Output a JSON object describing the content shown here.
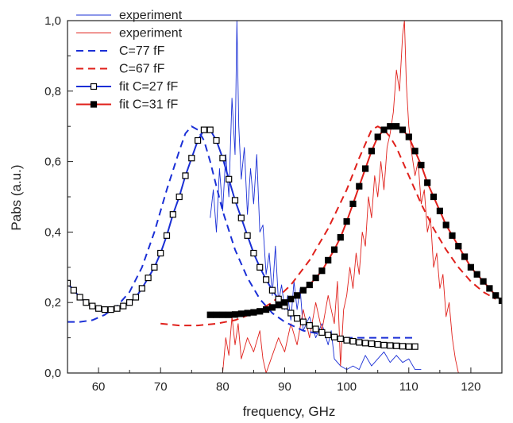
{
  "colors": {
    "blue": "#1a2fd6",
    "red": "#e0201b",
    "axis": "#222222",
    "background": "#ffffff"
  },
  "chart_data": {
    "type": "line",
    "xlabel": "frequency, GHz",
    "ylabel": "Pabs (a.u.)",
    "xlim": [
      55,
      125
    ],
    "ylim": [
      0,
      1.0
    ],
    "xticks": [
      60,
      70,
      80,
      90,
      100,
      110,
      120
    ],
    "xtick_labels": [
      "60",
      "70",
      "80",
      "90",
      "100",
      "110",
      "120"
    ],
    "yticks": [
      0,
      0.2,
      0.4,
      0.6,
      0.8,
      1.0
    ],
    "ytick_labels": [
      "0,0",
      "0,2",
      "0,4",
      "0,6",
      "0,8",
      "1,0"
    ],
    "grid": false,
    "legend_position": "top-left",
    "series": [
      {
        "name": "experiment",
        "color": "#1a2fd6",
        "style": "thin-line",
        "points": [
          [
            78,
            0.44
          ],
          [
            78.5,
            0.52
          ],
          [
            79,
            0.4
          ],
          [
            79.5,
            0.58
          ],
          [
            80,
            0.46
          ],
          [
            80.5,
            0.62
          ],
          [
            81,
            0.5
          ],
          [
            81.5,
            0.78
          ],
          [
            82,
            0.62
          ],
          [
            82.3,
            1.0
          ],
          [
            82.6,
            0.7
          ],
          [
            83,
            0.55
          ],
          [
            83.5,
            0.64
          ],
          [
            84,
            0.45
          ],
          [
            84.5,
            0.58
          ],
          [
            85,
            0.48
          ],
          [
            85.5,
            0.62
          ],
          [
            86,
            0.4
          ],
          [
            86.5,
            0.42
          ],
          [
            87,
            0.28
          ],
          [
            87.5,
            0.34
          ],
          [
            88,
            0.22
          ],
          [
            88.5,
            0.36
          ],
          [
            89,
            0.2
          ],
          [
            89.5,
            0.25
          ],
          [
            90,
            0.18
          ],
          [
            90.5,
            0.22
          ],
          [
            91,
            0.15
          ],
          [
            91.5,
            0.26
          ],
          [
            92,
            0.18
          ],
          [
            92.5,
            0.24
          ],
          [
            93,
            0.12
          ],
          [
            94,
            0.16
          ],
          [
            95,
            0.1
          ],
          [
            96,
            0.14
          ],
          [
            97,
            0.08
          ],
          [
            97.5,
            0.12
          ],
          [
            98,
            0.04
          ],
          [
            99,
            0.02
          ],
          [
            100,
            0.01
          ],
          [
            101,
            0.02
          ],
          [
            102,
            0.01
          ],
          [
            103,
            0.05
          ],
          [
            104,
            0.02
          ],
          [
            105,
            0.04
          ],
          [
            106,
            0.06
          ],
          [
            107,
            0.03
          ],
          [
            108,
            0.05
          ],
          [
            109,
            0.03
          ],
          [
            110,
            0.04
          ],
          [
            111,
            0.01
          ],
          [
            112,
            0.01
          ]
        ]
      },
      {
        "name": "experiment",
        "color": "#e0201b",
        "style": "thin-line",
        "points": [
          [
            80,
            0.0
          ],
          [
            80.5,
            0.1
          ],
          [
            81,
            0.05
          ],
          [
            81.5,
            0.16
          ],
          [
            82,
            0.08
          ],
          [
            82.5,
            0.14
          ],
          [
            83,
            0.04
          ],
          [
            84,
            0.1
          ],
          [
            85,
            0.06
          ],
          [
            86,
            0.12
          ],
          [
            86.5,
            0.04
          ],
          [
            87,
            0.0
          ],
          [
            88,
            0.05
          ],
          [
            89,
            0.1
          ],
          [
            90,
            0.06
          ],
          [
            91,
            0.14
          ],
          [
            92,
            0.08
          ],
          [
            93,
            0.18
          ],
          [
            94,
            0.1
          ],
          [
            95,
            0.2
          ],
          [
            96,
            0.12
          ],
          [
            97,
            0.22
          ],
          [
            98,
            0.14
          ],
          [
            98.5,
            0.26
          ],
          [
            99,
            0.02
          ],
          [
            99.5,
            0.18
          ],
          [
            100,
            0.22
          ],
          [
            100.5,
            0.3
          ],
          [
            101,
            0.24
          ],
          [
            101.5,
            0.34
          ],
          [
            102,
            0.28
          ],
          [
            102.5,
            0.4
          ],
          [
            103,
            0.36
          ],
          [
            103.5,
            0.5
          ],
          [
            104,
            0.44
          ],
          [
            104.5,
            0.56
          ],
          [
            105,
            0.5
          ],
          [
            105.5,
            0.6
          ],
          [
            106,
            0.52
          ],
          [
            106.5,
            0.64
          ],
          [
            107,
            0.68
          ],
          [
            107.5,
            0.74
          ],
          [
            108,
            0.86
          ],
          [
            108.5,
            0.8
          ],
          [
            109,
            0.96
          ],
          [
            109.3,
            1.0
          ],
          [
            109.6,
            0.82
          ],
          [
            110,
            0.7
          ],
          [
            110.5,
            0.62
          ],
          [
            111,
            0.56
          ],
          [
            111.5,
            0.6
          ],
          [
            112,
            0.48
          ],
          [
            112.5,
            0.52
          ],
          [
            113,
            0.4
          ],
          [
            113.5,
            0.44
          ],
          [
            114,
            0.3
          ],
          [
            114.5,
            0.34
          ],
          [
            115,
            0.24
          ],
          [
            115.5,
            0.28
          ],
          [
            116,
            0.16
          ],
          [
            116.5,
            0.2
          ],
          [
            117,
            0.1
          ],
          [
            117.5,
            0.04
          ],
          [
            118,
            0.0
          ]
        ]
      },
      {
        "name": "C=77 fF",
        "color": "#1a2fd6",
        "style": "dashed",
        "points": [
          [
            55,
            0.145
          ],
          [
            57,
            0.145
          ],
          [
            59,
            0.15
          ],
          [
            61,
            0.165
          ],
          [
            63,
            0.19
          ],
          [
            65,
            0.23
          ],
          [
            67,
            0.3
          ],
          [
            69,
            0.4
          ],
          [
            71,
            0.52
          ],
          [
            73,
            0.63
          ],
          [
            74,
            0.68
          ],
          [
            75,
            0.7
          ],
          [
            76,
            0.69
          ],
          [
            77,
            0.66
          ],
          [
            78,
            0.6
          ],
          [
            79,
            0.53
          ],
          [
            80,
            0.46
          ],
          [
            82,
            0.35
          ],
          [
            84,
            0.27
          ],
          [
            86,
            0.21
          ],
          [
            88,
            0.17
          ],
          [
            90,
            0.145
          ],
          [
            93,
            0.12
          ],
          [
            96,
            0.11
          ],
          [
            100,
            0.1
          ],
          [
            104,
            0.1
          ],
          [
            108,
            0.1
          ],
          [
            111,
            0.1
          ]
        ]
      },
      {
        "name": "C=67 fF",
        "color": "#e0201b",
        "style": "dashed",
        "points": [
          [
            70,
            0.14
          ],
          [
            73,
            0.135
          ],
          [
            76,
            0.135
          ],
          [
            79,
            0.14
          ],
          [
            82,
            0.15
          ],
          [
            85,
            0.17
          ],
          [
            88,
            0.2
          ],
          [
            91,
            0.25
          ],
          [
            94,
            0.32
          ],
          [
            97,
            0.41
          ],
          [
            100,
            0.52
          ],
          [
            102,
            0.61
          ],
          [
            103,
            0.65
          ],
          [
            104,
            0.69
          ],
          [
            105,
            0.7
          ],
          [
            106,
            0.69
          ],
          [
            107,
            0.67
          ],
          [
            108,
            0.64
          ],
          [
            110,
            0.56
          ],
          [
            112,
            0.48
          ],
          [
            114,
            0.41
          ],
          [
            116,
            0.35
          ],
          [
            118,
            0.3
          ],
          [
            120,
            0.26
          ],
          [
            122,
            0.23
          ],
          [
            124,
            0.21
          ]
        ]
      },
      {
        "name": "fit C=27 fF",
        "color": "#1a2fd6",
        "style": "line-open-square",
        "points": [
          [
            55,
            0.255
          ],
          [
            56,
            0.235
          ],
          [
            57,
            0.215
          ],
          [
            58,
            0.2
          ],
          [
            59,
            0.19
          ],
          [
            60,
            0.183
          ],
          [
            61,
            0.18
          ],
          [
            62,
            0.18
          ],
          [
            63,
            0.183
          ],
          [
            64,
            0.19
          ],
          [
            65,
            0.2
          ],
          [
            66,
            0.215
          ],
          [
            67,
            0.24
          ],
          [
            68,
            0.27
          ],
          [
            69,
            0.3
          ],
          [
            70,
            0.34
          ],
          [
            71,
            0.39
          ],
          [
            72,
            0.45
          ],
          [
            73,
            0.5
          ],
          [
            74,
            0.56
          ],
          [
            75,
            0.61
          ],
          [
            76,
            0.66
          ],
          [
            77,
            0.69
          ],
          [
            78,
            0.69
          ],
          [
            79,
            0.66
          ],
          [
            80,
            0.61
          ],
          [
            81,
            0.55
          ],
          [
            82,
            0.49
          ],
          [
            83,
            0.44
          ],
          [
            84,
            0.39
          ],
          [
            85,
            0.34
          ],
          [
            86,
            0.3
          ],
          [
            87,
            0.265
          ],
          [
            88,
            0.235
          ],
          [
            89,
            0.21
          ],
          [
            90,
            0.19
          ],
          [
            91,
            0.17
          ],
          [
            92,
            0.155
          ],
          [
            93,
            0.145
          ],
          [
            94,
            0.135
          ],
          [
            95,
            0.125
          ],
          [
            96,
            0.115
          ],
          [
            97,
            0.108
          ],
          [
            98,
            0.102
          ],
          [
            99,
            0.097
          ],
          [
            100,
            0.093
          ],
          [
            101,
            0.09
          ],
          [
            102,
            0.087
          ],
          [
            103,
            0.085
          ],
          [
            104,
            0.083
          ],
          [
            105,
            0.081
          ],
          [
            106,
            0.079
          ],
          [
            107,
            0.078
          ],
          [
            108,
            0.077
          ],
          [
            109,
            0.076
          ],
          [
            110,
            0.075
          ],
          [
            111,
            0.075
          ]
        ]
      },
      {
        "name": "fit C=31 fF",
        "color": "#e0201b",
        "style": "line-filled-square",
        "points": [
          [
            78,
            0.165
          ],
          [
            79,
            0.165
          ],
          [
            80,
            0.165
          ],
          [
            81,
            0.165
          ],
          [
            82,
            0.166
          ],
          [
            83,
            0.168
          ],
          [
            84,
            0.17
          ],
          [
            85,
            0.172
          ],
          [
            86,
            0.175
          ],
          [
            87,
            0.18
          ],
          [
            88,
            0.186
          ],
          [
            89,
            0.193
          ],
          [
            90,
            0.2
          ],
          [
            91,
            0.21
          ],
          [
            92,
            0.22
          ],
          [
            93,
            0.235
          ],
          [
            94,
            0.25
          ],
          [
            95,
            0.27
          ],
          [
            96,
            0.29
          ],
          [
            97,
            0.32
          ],
          [
            98,
            0.35
          ],
          [
            99,
            0.385
          ],
          [
            100,
            0.43
          ],
          [
            101,
            0.48
          ],
          [
            102,
            0.53
          ],
          [
            103,
            0.58
          ],
          [
            104,
            0.63
          ],
          [
            105,
            0.67
          ],
          [
            106,
            0.69
          ],
          [
            107,
            0.7
          ],
          [
            108,
            0.7
          ],
          [
            109,
            0.69
          ],
          [
            110,
            0.67
          ],
          [
            111,
            0.63
          ],
          [
            112,
            0.59
          ],
          [
            113,
            0.54
          ],
          [
            114,
            0.5
          ],
          [
            115,
            0.46
          ],
          [
            116,
            0.42
          ],
          [
            117,
            0.39
          ],
          [
            118,
            0.36
          ],
          [
            119,
            0.33
          ],
          [
            120,
            0.3
          ],
          [
            121,
            0.28
          ],
          [
            122,
            0.26
          ],
          [
            123,
            0.24
          ],
          [
            124,
            0.22
          ],
          [
            125,
            0.205
          ]
        ]
      }
    ]
  }
}
